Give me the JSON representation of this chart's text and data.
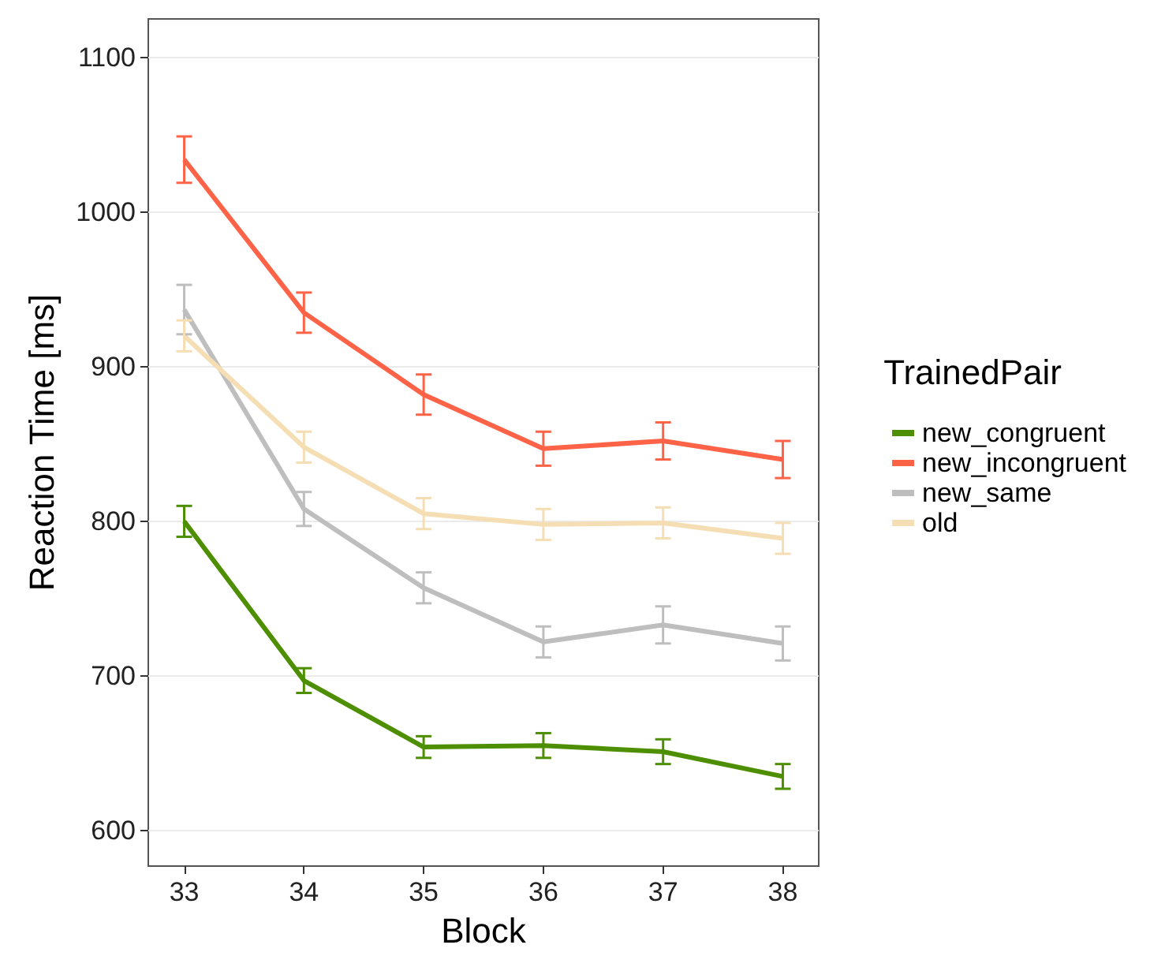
{
  "chart_data": {
    "type": "line",
    "xlabel": "Block",
    "ylabel": "Reaction Time [ms]",
    "legend_title": "TrainedPair",
    "x": [
      33,
      34,
      35,
      36,
      37,
      38
    ],
    "series": [
      {
        "name": "new_congruent",
        "color": "#4d8f00",
        "values": [
          800,
          697,
          654,
          655,
          651,
          635
        ],
        "errors": [
          10,
          8,
          7,
          8,
          8,
          8
        ]
      },
      {
        "name": "new_incongruent",
        "color": "#ff6347",
        "values": [
          1034,
          935,
          882,
          847,
          852,
          840
        ],
        "errors": [
          15,
          13,
          13,
          11,
          12,
          12
        ]
      },
      {
        "name": "new_same",
        "color": "#bebebe",
        "values": [
          937,
          808,
          757,
          722,
          733,
          721
        ],
        "errors": [
          16,
          11,
          10,
          10,
          12,
          11
        ]
      },
      {
        "name": "old",
        "color": "#f5deb3",
        "values": [
          920,
          848,
          805,
          798,
          799,
          789
        ],
        "errors": [
          10,
          10,
          10,
          10,
          10,
          10
        ]
      }
    ],
    "xlim": [
      32.7,
      38.3
    ],
    "xticks": [
      33,
      34,
      35,
      36,
      37,
      38
    ],
    "ylim": [
      577,
      1125
    ],
    "yticks": [
      600,
      700,
      800,
      900,
      1000,
      1100
    ],
    "grid": "y",
    "legend": "right",
    "marker": "none",
    "line_style": "solid"
  }
}
